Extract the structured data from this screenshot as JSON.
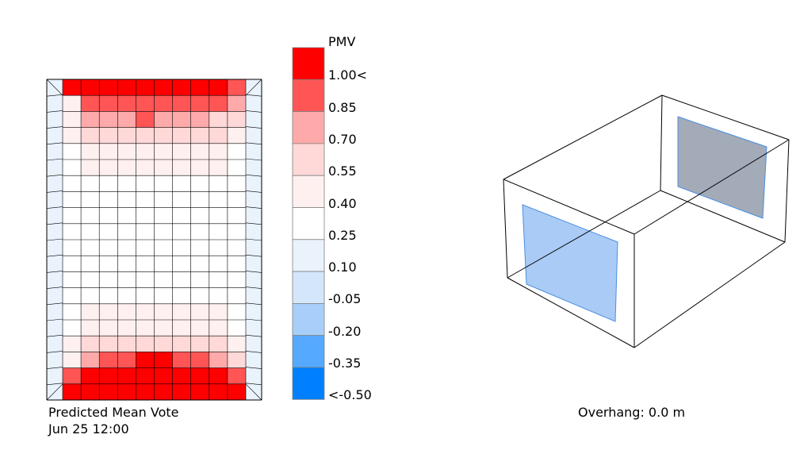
{
  "legend": {
    "title": "PMV",
    "labels": [
      "1.00<",
      "0.85",
      "0.70",
      "0.55",
      "0.40",
      "0.25",
      "0.10",
      "-0.05",
      "-0.20",
      "-0.35",
      "<-0.50"
    ],
    "colors": [
      "#ff0000",
      "#ff5555",
      "#ffaaaa",
      "#ffd8d8",
      "#fff0f0",
      "#ffffff",
      "#eaf2fc",
      "#d4e6fa",
      "#a7cffa",
      "#55a9ff",
      "#0080ff"
    ]
  },
  "grid": {
    "columns": 10,
    "rows": 20,
    "cell_values": [
      [
        1.0,
        1.0,
        1.0,
        1.0,
        1.0,
        1.0,
        1.0,
        1.0,
        1.0,
        0.85
      ],
      [
        0.4,
        0.85,
        0.85,
        0.85,
        0.85,
        0.85,
        0.85,
        0.85,
        0.85,
        0.7
      ],
      [
        0.4,
        0.7,
        0.7,
        0.7,
        0.85,
        0.7,
        0.7,
        0.7,
        0.55,
        0.55
      ],
      [
        0.4,
        0.55,
        0.55,
        0.55,
        0.55,
        0.55,
        0.55,
        0.55,
        0.55,
        0.4
      ],
      [
        0.25,
        0.4,
        0.4,
        0.4,
        0.4,
        0.4,
        0.4,
        0.4,
        0.4,
        0.25
      ],
      [
        0.25,
        0.4,
        0.4,
        0.4,
        0.4,
        0.4,
        0.4,
        0.4,
        0.4,
        0.25
      ],
      [
        0.25,
        0.25,
        0.25,
        0.25,
        0.25,
        0.25,
        0.25,
        0.25,
        0.25,
        0.25
      ],
      [
        0.25,
        0.25,
        0.25,
        0.25,
        0.25,
        0.25,
        0.25,
        0.25,
        0.25,
        0.25
      ],
      [
        0.25,
        0.25,
        0.25,
        0.25,
        0.25,
        0.25,
        0.25,
        0.25,
        0.25,
        0.25
      ],
      [
        0.25,
        0.25,
        0.25,
        0.25,
        0.25,
        0.25,
        0.25,
        0.25,
        0.25,
        0.25
      ],
      [
        0.25,
        0.25,
        0.25,
        0.25,
        0.25,
        0.25,
        0.25,
        0.25,
        0.25,
        0.25
      ],
      [
        0.25,
        0.25,
        0.25,
        0.25,
        0.25,
        0.25,
        0.25,
        0.25,
        0.25,
        0.25
      ],
      [
        0.25,
        0.25,
        0.25,
        0.25,
        0.25,
        0.25,
        0.25,
        0.25,
        0.25,
        0.25
      ],
      [
        0.25,
        0.25,
        0.25,
        0.25,
        0.25,
        0.25,
        0.25,
        0.25,
        0.25,
        0.25
      ],
      [
        0.25,
        0.4,
        0.4,
        0.4,
        0.4,
        0.4,
        0.4,
        0.4,
        0.4,
        0.25
      ],
      [
        0.25,
        0.4,
        0.4,
        0.4,
        0.4,
        0.4,
        0.4,
        0.4,
        0.4,
        0.25
      ],
      [
        0.4,
        0.55,
        0.55,
        0.55,
        0.55,
        0.55,
        0.55,
        0.55,
        0.55,
        0.4
      ],
      [
        0.4,
        0.7,
        0.85,
        0.85,
        1.0,
        1.0,
        0.85,
        0.85,
        0.7,
        0.55
      ],
      [
        0.85,
        1.0,
        1.0,
        1.0,
        1.0,
        1.0,
        1.0,
        1.0,
        1.0,
        0.85
      ],
      [
        1.0,
        1.0,
        1.0,
        1.0,
        1.0,
        1.0,
        1.0,
        1.0,
        1.0,
        1.0
      ]
    ],
    "perimeter_value": 0.1
  },
  "captions": {
    "metric": "Predicted Mean Vote",
    "datetime": "Jun 25 12:00",
    "overhang": "Overhang: 0.0 m"
  },
  "room": {
    "window_color": "#a9cbf5",
    "window_shaded_color": "#a3aab8"
  }
}
